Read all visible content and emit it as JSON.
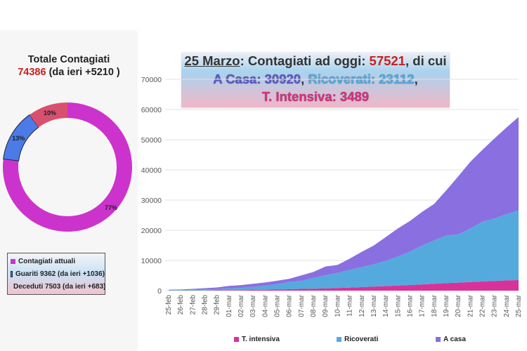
{
  "summary": {
    "title": "Totale Contagiati",
    "total": "74386",
    "delta": "(da ieri +5210 )"
  },
  "donut": {
    "slices": [
      {
        "name": "Contagiati attuali",
        "value": 77,
        "label": "77%",
        "color": "#cc33cc"
      },
      {
        "name": "Guariti",
        "value": 13,
        "label": "13%",
        "color": "#4a7be6"
      },
      {
        "name": "Deceduti",
        "value": 10,
        "label": "10%",
        "color": "#d9506e"
      }
    ],
    "legend": [
      {
        "label": "Contagiati attuali",
        "color": "#cc33cc"
      },
      {
        "label": "Guariti 9362 (da ieri +1036)",
        "color": "#4a7be6"
      },
      {
        "label": "Deceduti 7503 (da ieri +683)",
        "color": "#d9506e"
      }
    ]
  },
  "headline": {
    "date": "25 Marzo",
    "line1_mid": ": Contagiati ad oggi: ",
    "current": "57521",
    "line1_end": ", di cui",
    "casa": "A Casa: 30920",
    "sep1": ", ",
    "ricoverati": "Ricoverati: 23112",
    "sep2": ",",
    "intensiva": "T. Intensiva: 3489"
  },
  "chart_data": {
    "type": "area",
    "stacked": true,
    "title": "",
    "xlabel": "",
    "ylabel": "",
    "ylim": [
      0,
      70000
    ],
    "yticks": [
      0,
      10000,
      20000,
      30000,
      40000,
      50000,
      60000,
      70000
    ],
    "grid": true,
    "legend_position": "bottom",
    "categories": [
      "25-feb",
      "26-feb",
      "27-feb",
      "28-feb",
      "29-feb",
      "01-mar",
      "02-mar",
      "03-mar",
      "04-mar",
      "05-mar",
      "06-mar",
      "07-mar",
      "08-mar",
      "09-mar",
      "10-mar",
      "11-mar",
      "12-mar",
      "13-mar",
      "14-mar",
      "15-mar",
      "16-mar",
      "17-mar",
      "18-mar",
      "19-mar",
      "20-mar",
      "21-mar",
      "22-mar",
      "23-mar",
      "24-mar",
      "25-mar"
    ],
    "series": [
      {
        "name": "T. intensiva",
        "color": "#d9319a",
        "values": [
          35,
          36,
          56,
          64,
          105,
          140,
          166,
          229,
          295,
          351,
          462,
          567,
          650,
          733,
          877,
          1028,
          1153,
          1328,
          1518,
          1672,
          1851,
          2060,
          2257,
          2498,
          2655,
          2857,
          3009,
          3204,
          3396,
          3489
        ]
      },
      {
        "name": "Ricoverati",
        "color": "#55aadd",
        "values": [
          114,
          128,
          248,
          345,
          401,
          639,
          742,
          1034,
          1346,
          1790,
          2394,
          2651,
          3557,
          4316,
          5038,
          5838,
          6650,
          7426,
          8372,
          9663,
          11025,
          12894,
          14363,
          15757,
          16020,
          17708,
          19846,
          20692,
          21937,
          23112
        ]
      },
      {
        "name": "A casa",
        "color": "#8a6fe0",
        "values": [
          162,
          221,
          284,
          412,
          543,
          798,
          927,
          1000,
          1065,
          1155,
          1060,
          1843,
          1991,
          2936,
          2599,
          3724,
          5036,
          6201,
          7860,
          9268,
          10197,
          11108,
          12090,
          14935,
          19185,
          22116,
          23783,
          26522,
          28697,
          30920
        ]
      }
    ]
  }
}
